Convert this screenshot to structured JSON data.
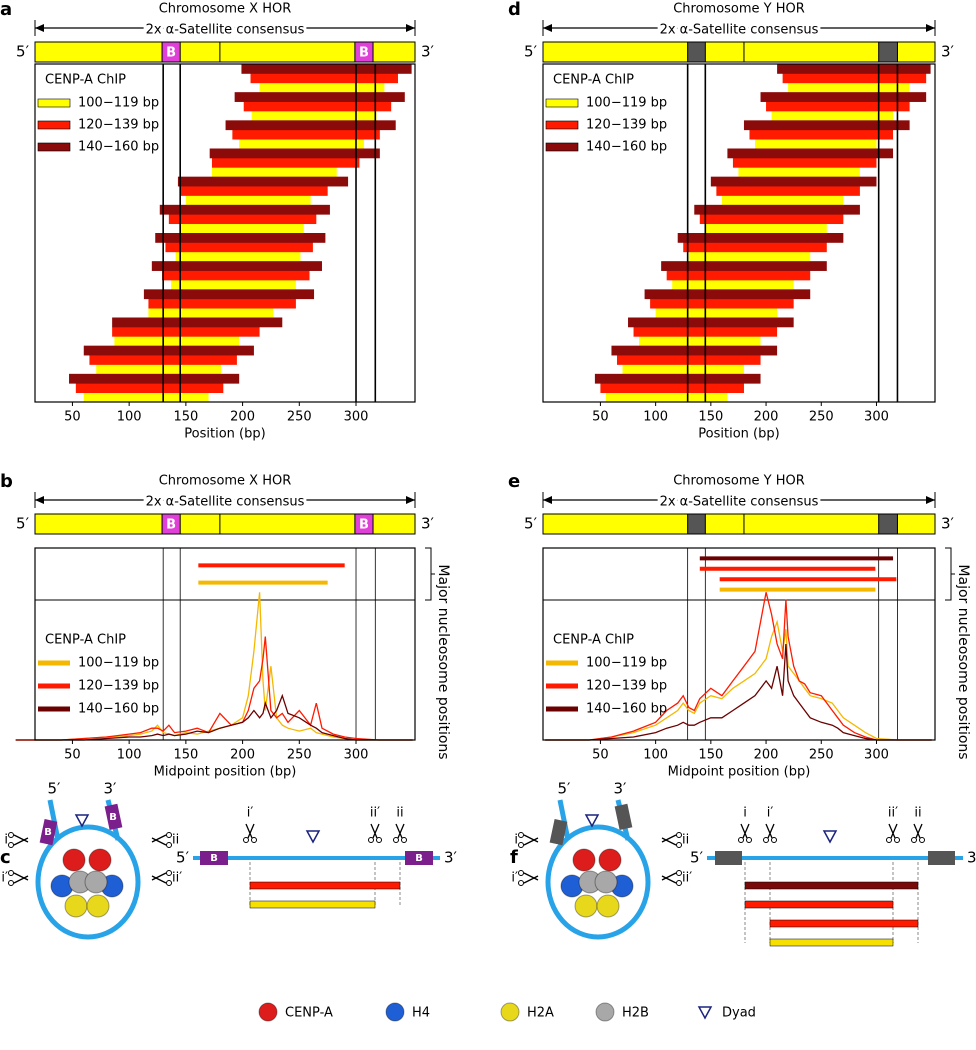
{
  "chart_data": [
    {
      "type": "pileup",
      "label": "a",
      "title": "Chromosome X HOR",
      "subtitle": "2x α-Satellite consensus",
      "ends": [
        "5′",
        "3′"
      ],
      "bar_color": "#ffff00",
      "box_color": "#e040d8",
      "boxes": [
        {
          "start": 129,
          "end": 145,
          "label": "B"
        },
        {
          "start": 299,
          "end": 315,
          "label": "B"
        }
      ],
      "boundary": 180,
      "vlines": [
        130,
        145,
        300,
        317
      ],
      "xlim": [
        17,
        352
      ],
      "xticks": [
        50,
        100,
        150,
        200,
        250,
        300
      ],
      "xlabel": "Position (bp)",
      "legend_title": "CENP-A ChIP",
      "series": [
        {
          "name": "100−119 bp",
          "color": "#ffff00",
          "reads": [
            [
              60,
              170
            ],
            [
              71,
              181
            ],
            [
              87,
              197
            ],
            [
              117,
              227
            ],
            [
              137,
              247
            ],
            [
              141,
              251
            ],
            [
              144,
              254
            ],
            [
              150,
              260
            ],
            [
              173,
              283
            ],
            [
              197,
              307
            ],
            [
              208,
              318
            ],
            [
              215,
              325
            ]
          ]
        },
        {
          "name": "120−139 bp",
          "color": "#ff1a00",
          "reads": [
            [
              53,
              183
            ],
            [
              65,
              195
            ],
            [
              85,
              215
            ],
            [
              117,
              247
            ],
            [
              129,
              259
            ],
            [
              132,
              262
            ],
            [
              135,
              265
            ],
            [
              145,
              275
            ],
            [
              173,
              303
            ],
            [
              191,
              321
            ],
            [
              201,
              331
            ],
            [
              207,
              337
            ]
          ]
        },
        {
          "name": "140−160 bp",
          "color": "#8b0a0a",
          "reads": [
            [
              47,
              197
            ],
            [
              60,
              210
            ],
            [
              85,
              235
            ],
            [
              113,
              263
            ],
            [
              120,
              270
            ],
            [
              123,
              273
            ],
            [
              127,
              277
            ],
            [
              143,
              293
            ],
            [
              171,
              321
            ],
            [
              185,
              335
            ],
            [
              193,
              343
            ],
            [
              199,
              349
            ]
          ]
        }
      ]
    },
    {
      "type": "midpoint",
      "label": "b",
      "title": "Chromosome X HOR",
      "subtitle": "2x α-Satellite consensus",
      "ends": [
        "5′",
        "3′"
      ],
      "bar_color": "#ffff00",
      "box_color": "#e040d8",
      "boxes": [
        {
          "start": 129,
          "end": 145,
          "label": "B"
        },
        {
          "start": 299,
          "end": 315,
          "label": "B"
        }
      ],
      "boundary": 180,
      "vlines": [
        130,
        145,
        300,
        317
      ],
      "xlim": [
        17,
        352
      ],
      "xticks": [
        50,
        100,
        150,
        200,
        250,
        300
      ],
      "xlabel": "Midpoint position (bp)",
      "side_label": "Major nucleosome positions",
      "positions": [
        {
          "color": "#ff1a00",
          "start": 161,
          "end": 290
        },
        {
          "color": "#f5b800",
          "start": 161,
          "end": 275
        }
      ],
      "legend_title": "CENP-A ChIP",
      "ylim": [
        0,
        130
      ],
      "x": [
        0,
        20,
        40,
        60,
        80,
        100,
        110,
        120,
        125,
        130,
        135,
        140,
        150,
        160,
        170,
        180,
        190,
        200,
        205,
        210,
        215,
        218,
        220,
        225,
        230,
        235,
        240,
        250,
        260,
        265,
        270,
        280,
        290,
        300,
        320,
        350
      ],
      "series": [
        {
          "name": "100−119 bp",
          "color": "#f5b800",
          "values": [
            0,
            0,
            0,
            1,
            2,
            3,
            4,
            6,
            10,
            5,
            4,
            3,
            5,
            4,
            6,
            8,
            10,
            15,
            30,
            60,
            100,
            40,
            20,
            50,
            15,
            10,
            8,
            6,
            8,
            5,
            4,
            2,
            1,
            0,
            0,
            0
          ]
        },
        {
          "name": "120−139 bp",
          "color": "#ff1a00",
          "values": [
            0,
            0,
            0,
            1,
            2,
            4,
            5,
            8,
            8,
            6,
            10,
            5,
            6,
            8,
            5,
            18,
            10,
            12,
            20,
            35,
            40,
            55,
            70,
            20,
            15,
            18,
            12,
            20,
            10,
            25,
            8,
            4,
            2,
            1,
            0,
            0
          ]
        },
        {
          "name": "140−160 bp",
          "color": "#6b0000",
          "values": [
            0,
            0,
            0,
            0,
            1,
            2,
            2,
            3,
            4,
            3,
            4,
            3,
            4,
            6,
            5,
            8,
            10,
            12,
            15,
            20,
            15,
            18,
            25,
            15,
            20,
            30,
            18,
            15,
            10,
            8,
            5,
            3,
            1,
            0,
            0,
            0
          ]
        }
      ]
    },
    {
      "type": "pileup",
      "label": "d",
      "title": "Chromosome Y HOR",
      "subtitle": "2x α-Satellite consensus",
      "ends": [
        "5′",
        "3′"
      ],
      "bar_color": "#ffff00",
      "box_color": "#555555",
      "boxes": [
        {
          "start": 129,
          "end": 145
        },
        {
          "start": 302,
          "end": 319
        }
      ],
      "boundary": 180,
      "vlines": [
        129,
        145,
        302,
        319
      ],
      "xlim": [
        -2,
        353
      ],
      "xticks": [
        50,
        100,
        150,
        200,
        250,
        300
      ],
      "xlabel": "Position (bp)",
      "legend_title": "CENP-A ChIP",
      "series": [
        {
          "name": "100−119 bp",
          "color": "#ffff00",
          "reads": [
            [
              55,
              165
            ],
            [
              70,
              180
            ],
            [
              85,
              195
            ],
            [
              100,
              210
            ],
            [
              115,
              225
            ],
            [
              130,
              240
            ],
            [
              145,
              255
            ],
            [
              160,
              270
            ],
            [
              175,
              285
            ],
            [
              190,
              300
            ],
            [
              205,
              315
            ],
            [
              220,
              330
            ]
          ]
        },
        {
          "name": "120−139 bp",
          "color": "#ff1a00",
          "reads": [
            [
              50,
              180
            ],
            [
              65,
              195
            ],
            [
              80,
              210
            ],
            [
              95,
              225
            ],
            [
              110,
              240
            ],
            [
              125,
              255
            ],
            [
              140,
              270
            ],
            [
              155,
              285
            ],
            [
              170,
              300
            ],
            [
              185,
              315
            ],
            [
              200,
              330
            ],
            [
              215,
              345
            ]
          ]
        },
        {
          "name": "140−160 bp",
          "color": "#8b0a0a",
          "reads": [
            [
              45,
              195
            ],
            [
              60,
              210
            ],
            [
              75,
              225
            ],
            [
              90,
              240
            ],
            [
              105,
              255
            ],
            [
              120,
              270
            ],
            [
              135,
              285
            ],
            [
              150,
              300
            ],
            [
              165,
              315
            ],
            [
              180,
              330
            ],
            [
              195,
              345
            ],
            [
              210,
              349
            ]
          ]
        }
      ]
    },
    {
      "type": "midpoint",
      "label": "e",
      "title": "Chromosome Y HOR",
      "subtitle": "2x α-Satellite consensus",
      "ends": [
        "5′",
        "3′"
      ],
      "bar_color": "#ffff00",
      "box_color": "#555555",
      "boxes": [
        {
          "start": 129,
          "end": 145
        },
        {
          "start": 302,
          "end": 319
        }
      ],
      "boundary": 180,
      "vlines": [
        129,
        145,
        302,
        319
      ],
      "xlim": [
        -2,
        353
      ],
      "xticks": [
        50,
        100,
        150,
        200,
        250,
        300
      ],
      "xlabel": "Midpoint position (bp)",
      "side_label": "Major nucleosome positions",
      "positions": [
        {
          "color": "#6b0000",
          "start": 140,
          "end": 315
        },
        {
          "color": "#ff1a00",
          "start": 140,
          "end": 299
        },
        {
          "color": "#ff1a00",
          "start": 158,
          "end": 318
        },
        {
          "color": "#f5b800",
          "start": 158,
          "end": 299
        }
      ],
      "legend_title": "CENP-A ChIP",
      "ylim": [
        0,
        130
      ],
      "x": [
        0,
        20,
        40,
        60,
        80,
        100,
        110,
        120,
        125,
        130,
        135,
        140,
        150,
        160,
        170,
        180,
        190,
        200,
        205,
        210,
        215,
        218,
        220,
        225,
        230,
        235,
        240,
        250,
        260,
        265,
        270,
        280,
        290,
        300,
        320,
        350
      ],
      "series": [
        {
          "name": "100−119 bp",
          "color": "#f5b800",
          "values": [
            0,
            0,
            0,
            2,
            5,
            10,
            15,
            20,
            25,
            20,
            18,
            25,
            30,
            28,
            35,
            40,
            45,
            55,
            70,
            80,
            60,
            75,
            50,
            45,
            40,
            35,
            30,
            28,
            25,
            20,
            15,
            10,
            5,
            1,
            0,
            0
          ]
        },
        {
          "name": "120−139 bp",
          "color": "#ff1a00",
          "values": [
            0,
            0,
            0,
            2,
            6,
            12,
            20,
            25,
            30,
            22,
            20,
            28,
            35,
            30,
            40,
            50,
            60,
            100,
            85,
            65,
            55,
            95,
            70,
            50,
            40,
            38,
            32,
            30,
            20,
            15,
            10,
            5,
            2,
            0,
            0,
            0
          ]
        },
        {
          "name": "140−160 bp",
          "color": "#6b0000",
          "values": [
            0,
            0,
            0,
            1,
            2,
            5,
            8,
            10,
            12,
            10,
            10,
            12,
            15,
            15,
            20,
            25,
            30,
            40,
            35,
            50,
            30,
            65,
            40,
            30,
            25,
            20,
            15,
            12,
            10,
            8,
            5,
            3,
            1,
            0,
            0,
            0
          ]
        }
      ]
    }
  ],
  "diagrams": [
    {
      "label": "c",
      "ends": [
        "5′",
        "3′"
      ],
      "cuts": [
        "i",
        "ii",
        "i′",
        "ii′"
      ],
      "box_label": "B",
      "box_color": "#7b1f8c",
      "linear_cuts": [
        "i′",
        "ii′",
        "ii"
      ]
    },
    {
      "label": "f",
      "ends": [
        "5′",
        "3′"
      ],
      "cuts": [
        "i",
        "ii",
        "i′",
        "ii′"
      ],
      "box_color": "#555555",
      "linear_cuts": [
        "i",
        "i′",
        "ii′",
        "ii"
      ]
    }
  ],
  "legend": [
    {
      "name": "CENP-A",
      "color": "#dd1c1c"
    },
    {
      "name": "H4",
      "color": "#1f5fd6"
    },
    {
      "name": "H2A",
      "color": "#e8d81c"
    },
    {
      "name": "H2B",
      "color": "#a8a8a8"
    },
    {
      "name": "Dyad",
      "color": "#1a237e"
    }
  ]
}
